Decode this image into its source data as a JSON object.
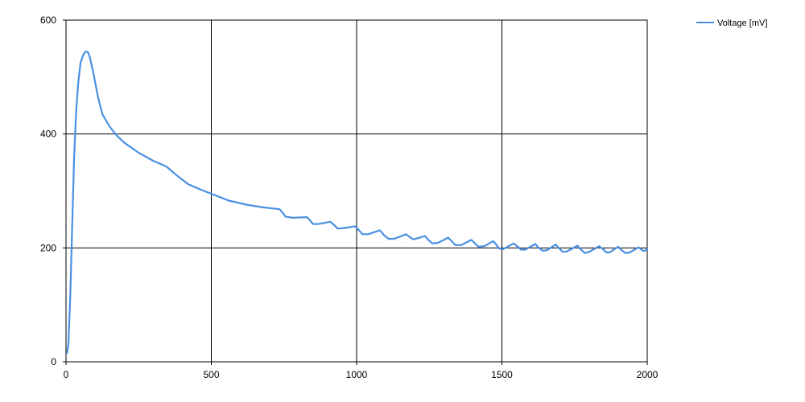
{
  "chart_data": {
    "type": "line",
    "title": "",
    "xlabel": "",
    "ylabel": "",
    "xlim": [
      0,
      2000
    ],
    "ylim": [
      0,
      600
    ],
    "x_ticks": [
      0,
      500,
      1000,
      1500,
      2000
    ],
    "y_ticks": [
      0,
      200,
      400,
      600
    ],
    "x_tick_labels": [
      "0",
      "500",
      "1000",
      "1500",
      "2000"
    ],
    "y_tick_labels": [
      "0",
      "200",
      "400",
      "600"
    ],
    "grid": true,
    "legend_position": "top-right",
    "series": [
      {
        "name": "Voltage [mV]",
        "color": "#4a90e2",
        "points": [
          [
            3,
            15
          ],
          [
            8,
            30
          ],
          [
            15,
            120
          ],
          [
            22,
            250
          ],
          [
            28,
            360
          ],
          [
            35,
            440
          ],
          [
            42,
            490
          ],
          [
            50,
            525
          ],
          [
            60,
            540
          ],
          [
            68,
            545
          ],
          [
            75,
            544
          ],
          [
            82,
            535
          ],
          [
            95,
            505
          ],
          [
            110,
            465
          ],
          [
            125,
            435
          ],
          [
            150,
            413
          ],
          [
            175,
            397
          ],
          [
            200,
            385
          ],
          [
            250,
            367
          ],
          [
            300,
            353
          ],
          [
            345,
            343
          ],
          [
            380,
            328
          ],
          [
            420,
            312
          ],
          [
            460,
            303
          ],
          [
            500,
            295
          ],
          [
            560,
            283
          ],
          [
            620,
            276
          ],
          [
            680,
            271
          ],
          [
            735,
            268
          ],
          [
            745,
            262
          ],
          [
            755,
            255
          ],
          [
            780,
            253
          ],
          [
            830,
            254
          ],
          [
            840,
            248
          ],
          [
            850,
            242
          ],
          [
            870,
            242
          ],
          [
            910,
            246
          ],
          [
            925,
            239
          ],
          [
            935,
            234
          ],
          [
            960,
            235
          ],
          [
            995,
            238
          ],
          [
            1010,
            230
          ],
          [
            1020,
            224
          ],
          [
            1040,
            224
          ],
          [
            1080,
            231
          ],
          [
            1095,
            222
          ],
          [
            1110,
            216
          ],
          [
            1130,
            216
          ],
          [
            1170,
            224
          ],
          [
            1180,
            220
          ],
          [
            1195,
            215
          ],
          [
            1210,
            217
          ],
          [
            1235,
            221
          ],
          [
            1245,
            215
          ],
          [
            1260,
            208
          ],
          [
            1280,
            209
          ],
          [
            1315,
            218
          ],
          [
            1325,
            213
          ],
          [
            1340,
            205
          ],
          [
            1360,
            205
          ],
          [
            1395,
            214
          ],
          [
            1405,
            209
          ],
          [
            1420,
            202
          ],
          [
            1440,
            203
          ],
          [
            1470,
            212
          ],
          [
            1480,
            206
          ],
          [
            1490,
            199
          ],
          [
            1505,
            198
          ],
          [
            1540,
            208
          ],
          [
            1555,
            202
          ],
          [
            1565,
            197
          ],
          [
            1580,
            197
          ],
          [
            1615,
            207
          ],
          [
            1625,
            201
          ],
          [
            1640,
            195
          ],
          [
            1655,
            196
          ],
          [
            1685,
            206
          ],
          [
            1695,
            200
          ],
          [
            1710,
            193
          ],
          [
            1725,
            194
          ],
          [
            1760,
            204
          ],
          [
            1770,
            198
          ],
          [
            1785,
            191
          ],
          [
            1800,
            193
          ],
          [
            1835,
            203
          ],
          [
            1845,
            199
          ],
          [
            1860,
            192
          ],
          [
            1870,
            192
          ],
          [
            1900,
            202
          ],
          [
            1910,
            197
          ],
          [
            1925,
            191
          ],
          [
            1940,
            192
          ],
          [
            1970,
            201
          ],
          [
            1975,
            199
          ],
          [
            1985,
            195
          ],
          [
            1992,
            195
          ],
          [
            2000,
            198
          ]
        ]
      }
    ]
  }
}
